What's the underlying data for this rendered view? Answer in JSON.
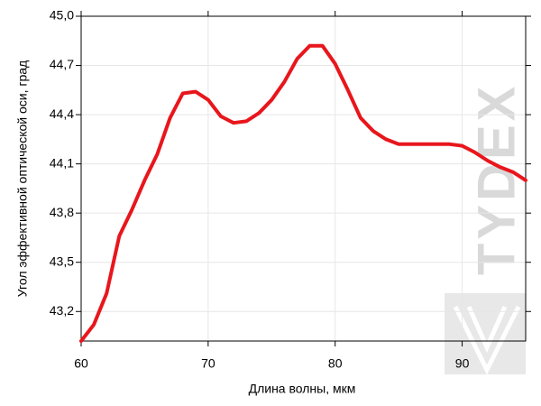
{
  "chart_data": {
    "type": "line",
    "x_label": "Длина волны, мкм",
    "y_label": "Угол эффективной оптической оси, град",
    "watermark": "TYDEX",
    "xlim": [
      60,
      95
    ],
    "ylim": [
      43.02,
      45.0
    ],
    "xticks": [
      60,
      70,
      80,
      90
    ],
    "yticks": [
      {
        "value": 43.2,
        "label": "43,2"
      },
      {
        "value": 43.5,
        "label": "43,5"
      },
      {
        "value": 43.8,
        "label": "43,8"
      },
      {
        "value": 44.1,
        "label": "44,1"
      },
      {
        "value": 44.4,
        "label": "44,4"
      },
      {
        "value": 44.7,
        "label": "44,7"
      },
      {
        "value": 45.0,
        "label": "45,0"
      }
    ],
    "grid": true,
    "series": [
      {
        "color": "#e8161c",
        "x": [
          60,
          61,
          62,
          63,
          64,
          65,
          66,
          67,
          68,
          69,
          70,
          71,
          72,
          73,
          74,
          75,
          76,
          77,
          78,
          79,
          80,
          81,
          82,
          83,
          84,
          85,
          86,
          87,
          88,
          89,
          90,
          91,
          92,
          93,
          94,
          95
        ],
        "values": [
          43.02,
          43.12,
          43.31,
          43.66,
          43.82,
          44.0,
          44.16,
          44.38,
          44.53,
          44.54,
          44.49,
          44.39,
          44.35,
          44.36,
          44.41,
          44.49,
          44.6,
          44.74,
          44.82,
          44.82,
          44.71,
          44.55,
          44.38,
          44.3,
          44.25,
          44.22,
          44.22,
          44.22,
          44.22,
          44.22,
          44.21,
          44.17,
          44.12,
          44.08,
          44.05,
          44.0
        ]
      }
    ]
  }
}
